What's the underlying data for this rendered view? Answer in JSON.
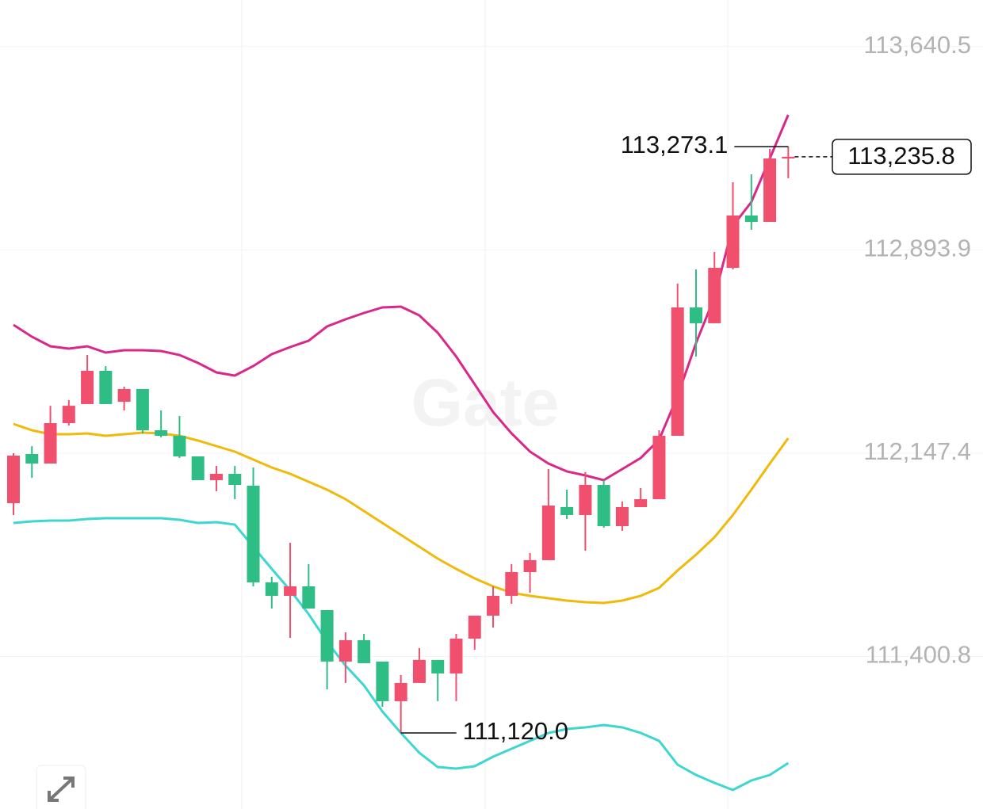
{
  "chart_data": {
    "type": "candlestick",
    "watermark": "Gate",
    "ylim": [
      110840.7,
      113811.4
    ],
    "yticks": [
      {
        "value": 113640.5,
        "label": "113,640.5"
      },
      {
        "value": 112893.9,
        "label": "112,893.9"
      },
      {
        "value": 112147.4,
        "label": "112,147.4"
      },
      {
        "value": 111400.8,
        "label": "111,400.8"
      }
    ],
    "grid": true,
    "up_color": "#f0506e",
    "down_color": "#2ebd85",
    "open": [
      111963.8,
      112144.2,
      112109.3,
      112257.6,
      112327.6,
      112449.9,
      112336.2,
      112382.8,
      112231.5,
      112211.1,
      112135.5,
      112048.2,
      112071.5,
      112027.8,
      111672.9,
      111623.5,
      111658.4,
      111571.1,
      111382.1,
      111460.6,
      111382.1,
      111236.6,
      111303.5,
      111387.9,
      111338.4,
      111466.4,
      111550.7,
      111623.5,
      111710.7,
      111754.4,
      111949.2,
      111920.2,
      112030.8,
      111879.4,
      111949.2,
      111978.4,
      112211.1,
      112682.5,
      112624.4,
      112827.9,
      113020.0,
      112996.7,
      113229.5
    ],
    "high": [
      112147.1,
      112173.3,
      112321.4,
      112342.0,
      112508.0,
      112467.2,
      112391.5,
      112382.8,
      112304.2,
      112283.8,
      112135.5,
      112100.6,
      112100.6,
      112094.7,
      111693.3,
      111818.4,
      111739.8,
      111571.1,
      111489.6,
      111483.8,
      111382.1,
      111332.6,
      111431.5,
      111387.9,
      111483.8,
      111550.7,
      111658.4,
      111739.8,
      111780.5,
      112088.9,
      112013.3,
      112077.3,
      112048.2,
      111969.6,
      112019.1,
      112231.5,
      112770.0,
      112822.2,
      112886.2,
      113142.2,
      113171.3,
      113264.4,
      113273.1
    ],
    "low": [
      111920.2,
      112057.0,
      112109.3,
      112249.0,
      112327.6,
      112327.6,
      112304.2,
      112219.8,
      112205.3,
      112129.6,
      112048.2,
      112007.4,
      111978.4,
      111658.4,
      111576.9,
      111469.3,
      111576.9,
      111280.2,
      111303.5,
      111376.2,
      111216.2,
      111120.0,
      111303.5,
      111236.6,
      111236.6,
      111425.7,
      111507.1,
      111594.4,
      111635.1,
      111754.4,
      111905.6,
      111789.3,
      111873.6,
      111862.0,
      111949.2,
      111978.4,
      112211.1,
      112502.2,
      112624.4,
      112822.2,
      112967.6,
      112996.7,
      113156.8
    ],
    "close": [
      112138.4,
      112109.3,
      112257.6,
      112321.4,
      112449.9,
      112327.6,
      112382.8,
      112231.5,
      112211.1,
      112135.5,
      112048.2,
      112071.5,
      112030.8,
      111672.9,
      111623.5,
      111658.4,
      111576.9,
      111382.1,
      111460.6,
      111376.2,
      111236.6,
      111303.5,
      111387.9,
      111338.4,
      111466.4,
      111550.7,
      111623.5,
      111710.7,
      111754.4,
      111955.1,
      111920.2,
      112030.8,
      111879.4,
      111949.2,
      111978.4,
      112211.1,
      112682.5,
      112624.4,
      112827.9,
      113020.0,
      112996.7,
      113229.5,
      113235.8
    ],
    "lines": [
      {
        "color": "#d9278a",
        "values": [
          112618.5,
          112574.8,
          112539.9,
          112531.2,
          112539.9,
          112516.6,
          112525.4,
          112525.4,
          112522.5,
          112507.9,
          112478.8,
          112443.9,
          112432.2,
          112467.2,
          112510.8,
          112537.0,
          112560.3,
          112612.6,
          112638.8,
          112662.1,
          112682.5,
          112685.4,
          112653.4,
          112589.4,
          112502.2,
          112400.2,
          112298.4,
          112219.8,
          112152.9,
          112109.3,
          112080.2,
          112065.6,
          112048.2,
          112088.9,
          112129.6,
          112196.6,
          112356.6,
          112551.5,
          112720.3,
          112982.2,
          113069.5,
          113229.5,
          113389.5
        ]
      },
      {
        "color": "#f0b90b",
        "values": [
          112254.8,
          112231.5,
          112216.9,
          112216.9,
          112219.8,
          112211.1,
          112216.9,
          112222.8,
          112219.8,
          112211.1,
          112193.7,
          112173.3,
          112152.9,
          112123.8,
          112094.7,
          112071.5,
          112042.4,
          112013.3,
          111978.4,
          111934.7,
          111891.1,
          111847.4,
          111803.8,
          111760.1,
          111722.3,
          111687.4,
          111658.4,
          111635.1,
          111623.5,
          111614.7,
          111605.9,
          111600.1,
          111597.2,
          111605.9,
          111623.5,
          111652.5,
          111716.5,
          111774.7,
          111838.7,
          111920.2,
          112013.3,
          112109.3,
          112202.4
        ]
      },
      {
        "color": "#3dd6d0",
        "values": [
          111891.1,
          111896.9,
          111899.8,
          111899.8,
          111905.6,
          111908.5,
          111908.5,
          111908.5,
          111908.5,
          111902.7,
          111891.1,
          111894.0,
          111885.2,
          111803.8,
          111722.3,
          111643.7,
          111556.5,
          111454.6,
          111367.3,
          111294.6,
          111198.6,
          111120.0,
          111047.3,
          110994.9,
          110989.1,
          110997.8,
          111032.7,
          111061.8,
          111090.9,
          111120.0,
          111134.6,
          111140.4,
          111149.1,
          111140.4,
          111120.0,
          111090.9,
          111003.6,
          110965.8,
          110936.7,
          110910.5,
          110945.5,
          110965.8,
          111009.5
        ]
      }
    ],
    "high_marker": {
      "value": 113273.1,
      "label": "113,273.1"
    },
    "low_marker": {
      "value": 111120.0,
      "label": "111,120.0"
    },
    "last_price": {
      "value": 113235.8,
      "label": "113,235.8"
    }
  }
}
